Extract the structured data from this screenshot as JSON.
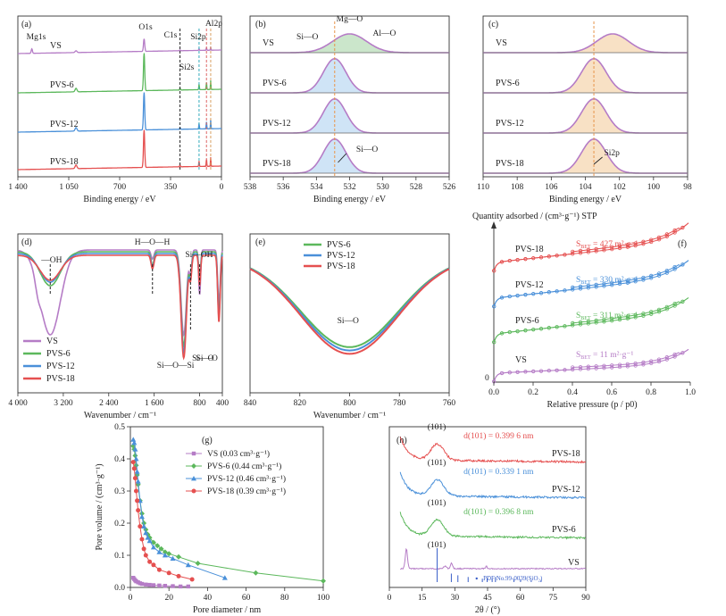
{
  "colors": {
    "VS": "#b57cc6",
    "PVS-6": "#5cb85c",
    "PVS-12": "#4a90d9",
    "PVS-18": "#e55050",
    "pdf": "#3a5fc8",
    "axis": "#333333",
    "ref_orange": "#e8944a"
  },
  "chart_data": [
    {
      "id": "a",
      "type": "line",
      "panel_label": "(a)",
      "xlabel": "Binding energy / eV",
      "xlim": [
        1400,
        0
      ],
      "x_reversed": true,
      "xticks": [
        1400,
        1050,
        700,
        350,
        0
      ],
      "xtick_labels": [
        "1 400",
        "1 050",
        "700",
        "350",
        "0"
      ],
      "series": [
        {
          "name": "VS",
          "label": "VS"
        },
        {
          "name": "PVS-6",
          "label": "PVS-6"
        },
        {
          "name": "PVS-12",
          "label": "PVS-12"
        },
        {
          "name": "PVS-18",
          "label": "PVS-18"
        }
      ],
      "peaks": [
        {
          "label": "Mg1s",
          "x": 1304
        },
        {
          "label": "O1s",
          "x": 532
        },
        {
          "label": "C1s",
          "x": 285
        },
        {
          "label": "Si2p",
          "x": 103
        },
        {
          "label": "Si2s",
          "x": 154
        },
        {
          "label": "Al2p",
          "x": 74
        }
      ]
    },
    {
      "id": "b",
      "type": "line",
      "panel_label": "(b)",
      "xlabel": "Binding energy / eV",
      "xlim": [
        538,
        526
      ],
      "x_reversed": true,
      "xticks": [
        538,
        536,
        534,
        532,
        530,
        528,
        526
      ],
      "xtick_labels": [
        "538",
        "536",
        "534",
        "532",
        "530",
        "528",
        "526"
      ],
      "reference_line": 532.9,
      "series": [
        {
          "name": "VS",
          "label": "VS",
          "center": 532.0,
          "fwhm": 2.4,
          "height": 0.55
        },
        {
          "name": "PVS-6",
          "label": "PVS-6",
          "center": 532.9,
          "fwhm": 1.6,
          "height": 1.0
        },
        {
          "name": "PVS-12",
          "label": "PVS-12",
          "center": 532.9,
          "fwhm": 1.6,
          "height": 1.0
        },
        {
          "name": "PVS-18",
          "label": "PVS-18",
          "center": 532.9,
          "fwhm": 1.6,
          "height": 1.0
        }
      ],
      "annotations": [
        "Si—O",
        "Mg—O",
        "Al—O",
        "Si—O"
      ]
    },
    {
      "id": "c",
      "type": "line",
      "panel_label": "(c)",
      "xlabel": "Binding energy / eV",
      "xlim": [
        110,
        98
      ],
      "x_reversed": true,
      "xticks": [
        110,
        108,
        106,
        104,
        102,
        100,
        98
      ],
      "xtick_labels": [
        "110",
        "108",
        "106",
        "104",
        "102",
        "100",
        "98"
      ],
      "reference_line": 103.5,
      "series": [
        {
          "name": "VS",
          "label": "VS",
          "center": 102.4,
          "fwhm": 2.2,
          "height": 0.55
        },
        {
          "name": "PVS-6",
          "label": "PVS-6",
          "center": 103.5,
          "fwhm": 1.7,
          "height": 1.0
        },
        {
          "name": "PVS-12",
          "label": "PVS-12",
          "center": 103.5,
          "fwhm": 1.7,
          "height": 1.0
        },
        {
          "name": "PVS-18",
          "label": "PVS-18",
          "center": 103.5,
          "fwhm": 1.7,
          "height": 1.0
        }
      ],
      "annotations": [
        "Si2p"
      ]
    },
    {
      "id": "d",
      "type": "line",
      "panel_label": "(d)",
      "xlabel": "Wavenumber / cm⁻¹",
      "xlim": [
        4000,
        400
      ],
      "x_reversed": true,
      "xticks": [
        4000,
        3200,
        2400,
        1600,
        800,
        400
      ],
      "xtick_labels": [
        "4 000",
        "3 200",
        "2 400",
        "1 600",
        "800",
        "400"
      ],
      "legend": [
        "VS",
        "PVS-6",
        "PVS-12",
        "PVS-18"
      ],
      "bands": [
        {
          "label": "—OH",
          "x": 3430
        },
        {
          "label": "H—O—H",
          "x": 1630
        },
        {
          "label": "Si—OH",
          "x": 960
        },
        {
          "label": "Si—O—Si",
          "x": 1080
        },
        {
          "label": "Si—O",
          "x": 800
        },
        {
          "label": "Si—O",
          "x": 460
        }
      ]
    },
    {
      "id": "e",
      "type": "line",
      "panel_label": "(e)",
      "xlabel": "Wavenumber / cm⁻¹",
      "xlim": [
        840,
        760
      ],
      "x_reversed": true,
      "xticks": [
        840,
        820,
        800,
        780,
        760
      ],
      "xtick_labels": [
        "840",
        "820",
        "800",
        "780",
        "760"
      ],
      "legend": [
        "PVS-6",
        "PVS-12",
        "PVS-18"
      ],
      "band_label": "Si—O",
      "series": [
        {
          "name": "PVS-6",
          "min_x": 800,
          "depth": 0.8
        },
        {
          "name": "PVS-12",
          "min_x": 800,
          "depth": 0.83
        },
        {
          "name": "PVS-18",
          "min_x": 800,
          "depth": 0.86
        }
      ]
    },
    {
      "id": "f",
      "type": "line",
      "panel_label": "(f)",
      "title": "Quantity adsorbed / (cm³·g⁻¹) STP",
      "xlabel": "Relative pressure (p / p0)",
      "xlim": [
        0,
        1.0
      ],
      "xticks": [
        0,
        0.2,
        0.4,
        0.6,
        0.8,
        1.0
      ],
      "xtick_labels": [
        "0.0",
        "0.2",
        "0.4",
        "0.6",
        "0.8",
        "1.0"
      ],
      "origin_label": "0",
      "series": [
        {
          "name": "VS",
          "label": "VS",
          "bet_value": "11",
          "bet_text": "S_BET = 11 m²·g⁻¹"
        },
        {
          "name": "PVS-6",
          "label": "PVS-6",
          "bet_value": "311",
          "bet_text": "S_BET = 311 m²·g⁻¹"
        },
        {
          "name": "PVS-12",
          "label": "PVS-12",
          "bet_value": "330",
          "bet_text": "S_BET = 330 m²·g⁻¹"
        },
        {
          "name": "PVS-18",
          "label": "PVS-18",
          "bet_value": "427",
          "bet_text": "S_BET = 427 m²·g⁻¹"
        }
      ]
    },
    {
      "id": "g",
      "type": "scatter",
      "panel_label": "(g)",
      "xlabel": "Pore diameter / nm",
      "ylabel": "Pore volume / (cm³·g⁻¹)",
      "xlim": [
        0,
        100
      ],
      "ylim": [
        0,
        0.5
      ],
      "xticks": [
        0,
        20,
        40,
        60,
        80,
        100
      ],
      "yticks": [
        0,
        0.1,
        0.2,
        0.3,
        0.4,
        0.5
      ],
      "xtick_labels": [
        "0",
        "20",
        "40",
        "60",
        "80",
        "100"
      ],
      "ytick_labels": [
        "0.0",
        "0.1",
        "0.2",
        "0.3",
        "0.4",
        "0.5"
      ],
      "legend": [
        "VS (0.03 cm³·g⁻¹)",
        "PVS-6 (0.44 cm³·g⁻¹)",
        "PVS-12 (0.46 cm³·g⁻¹)",
        "PVS-18 (0.39 cm³·g⁻¹)"
      ],
      "series": [
        {
          "name": "VS",
          "marker": "square",
          "x": [
            1.5,
            2,
            2.5,
            3,
            4,
            5,
            6,
            8,
            10,
            12,
            15,
            18,
            22,
            26,
            30
          ],
          "y": [
            0.03,
            0.026,
            0.022,
            0.019,
            0.016,
            0.013,
            0.011,
            0.009,
            0.008,
            0.007,
            0.006,
            0.005,
            0.004,
            0.003,
            0.003
          ]
        },
        {
          "name": "PVS-6",
          "marker": "diamond",
          "x": [
            1.5,
            2,
            2.5,
            3,
            3.5,
            4,
            5,
            6,
            7,
            8,
            9,
            10,
            12,
            14,
            16,
            18,
            20,
            25,
            35,
            65,
            100
          ],
          "y": [
            0.44,
            0.43,
            0.41,
            0.38,
            0.35,
            0.32,
            0.27,
            0.23,
            0.2,
            0.18,
            0.165,
            0.155,
            0.14,
            0.13,
            0.12,
            0.11,
            0.105,
            0.095,
            0.075,
            0.045,
            0.02
          ]
        },
        {
          "name": "PVS-12",
          "marker": "triangle",
          "x": [
            1.5,
            2,
            2.5,
            3,
            3.5,
            4,
            5,
            6,
            7,
            8,
            9,
            10,
            12,
            15,
            18,
            22,
            30,
            49
          ],
          "y": [
            0.46,
            0.45,
            0.43,
            0.4,
            0.36,
            0.33,
            0.27,
            0.22,
            0.19,
            0.17,
            0.155,
            0.145,
            0.125,
            0.11,
            0.1,
            0.09,
            0.07,
            0.03
          ]
        },
        {
          "name": "PVS-18",
          "marker": "circle",
          "x": [
            1.5,
            2,
            2.5,
            3,
            3.5,
            4,
            5,
            6,
            7,
            8,
            10,
            12,
            15,
            20,
            25,
            32
          ],
          "y": [
            0.39,
            0.37,
            0.34,
            0.3,
            0.27,
            0.24,
            0.19,
            0.15,
            0.12,
            0.1,
            0.08,
            0.07,
            0.055,
            0.045,
            0.035,
            0.025
          ]
        }
      ]
    },
    {
      "id": "h",
      "type": "line",
      "panel_label": "(h)",
      "xlabel": "2θ / (°)",
      "xlim": [
        0,
        90
      ],
      "xticks": [
        0,
        15,
        30,
        45,
        60,
        75,
        90
      ],
      "xtick_labels": [
        "0",
        "15",
        "30",
        "45",
        "60",
        "75",
        "90"
      ],
      "peak_label": "(101)",
      "pdf_label": "PDF No.99-0039(SiO₂)",
      "series": [
        {
          "name": "VS",
          "label": "VS",
          "d_text": ""
        },
        {
          "name": "PVS-6",
          "label": "PVS-6",
          "d_text": "d(101) = 0.396 8 nm"
        },
        {
          "name": "PVS-12",
          "label": "PVS-12",
          "d_text": "d(101) = 0.339 1 nm"
        },
        {
          "name": "PVS-18",
          "label": "PVS-18",
          "d_text": "d(101) = 0.399 6 nm"
        }
      ],
      "pdf_lines": [
        {
          "x": 21.9,
          "h": 1.0
        },
        {
          "x": 28.4,
          "h": 0.25
        },
        {
          "x": 31.4,
          "h": 0.2
        },
        {
          "x": 36.1,
          "h": 0.15
        },
        {
          "x": 42.6,
          "h": 0.1
        },
        {
          "x": 44.8,
          "h": 0.12
        },
        {
          "x": 47.1,
          "h": 0.1
        },
        {
          "x": 48.6,
          "h": 0.15
        },
        {
          "x": 57.1,
          "h": 0.08
        },
        {
          "x": 60.1,
          "h": 0.08
        },
        {
          "x": 65.0,
          "h": 0.06
        },
        {
          "x": 69.5,
          "h": 0.06
        }
      ]
    }
  ]
}
